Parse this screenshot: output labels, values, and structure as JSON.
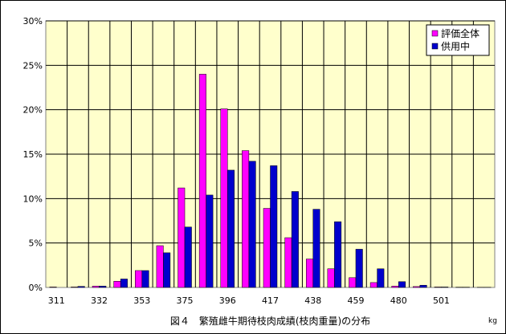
{
  "chart_data": {
    "type": "bar",
    "title": "図４　繁殖雌牛期待枝肉成績(枝肉重量)の分布",
    "xlabel": "",
    "ylabel": "",
    "x_unit": "kg",
    "categories": [
      "311",
      "",
      "332",
      "",
      "353",
      "",
      "375",
      "",
      "396",
      "",
      "417",
      "",
      "438",
      "",
      "459",
      "",
      "480",
      "",
      "501",
      "",
      ""
    ],
    "x_tick_labels": [
      "311",
      "332",
      "353",
      "375",
      "396",
      "417",
      "438",
      "459",
      "480",
      "501"
    ],
    "y_tick_labels": [
      "0%",
      "5%",
      "10%",
      "15%",
      "20%",
      "25%",
      "30%"
    ],
    "ylim": [
      0,
      30
    ],
    "grid": true,
    "legend": "top-right",
    "series": [
      {
        "name": "評価全体",
        "color": "#ff00ff",
        "values": [
          0.05,
          0.05,
          0.15,
          0.7,
          1.9,
          4.7,
          11.2,
          24.0,
          20.1,
          15.4,
          8.9,
          5.6,
          3.2,
          2.1,
          1.1,
          0.55,
          0.15,
          0.1,
          0.05,
          0.03,
          0.02
        ]
      },
      {
        "name": "供用中",
        "color": "#0000cc",
        "values": [
          0.0,
          0.12,
          0.15,
          0.95,
          1.9,
          3.9,
          6.8,
          10.4,
          13.2,
          14.2,
          13.7,
          10.8,
          8.8,
          7.4,
          4.3,
          2.1,
          0.65,
          0.25,
          0.05,
          0.03,
          0.02
        ]
      }
    ]
  }
}
